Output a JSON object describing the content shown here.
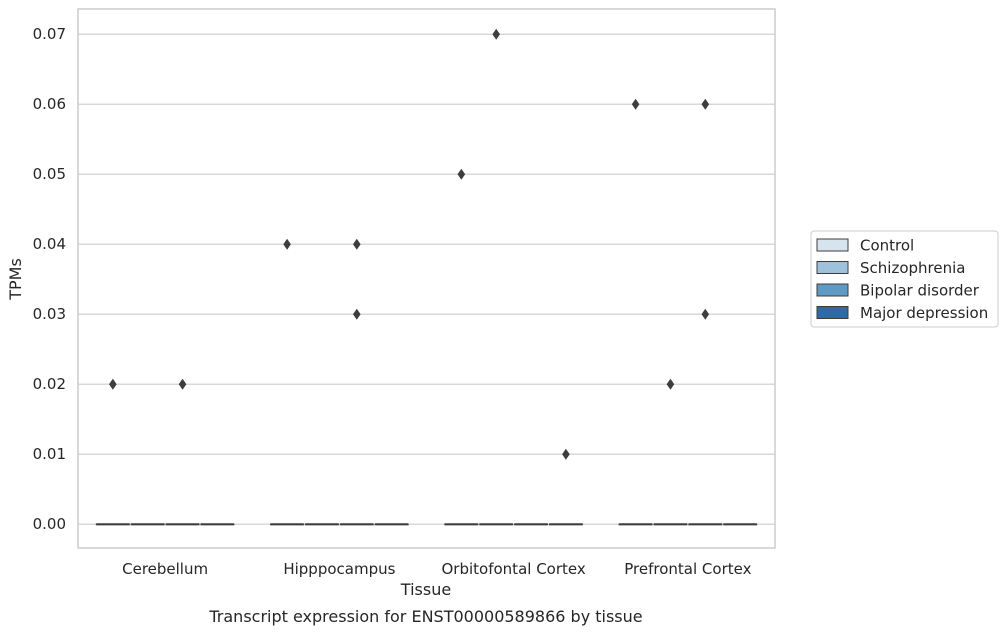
{
  "chart_data": {
    "type": "boxplot",
    "xlabel": "Tissue",
    "ylabel": "TPMs",
    "caption": "Transcript expression for ENST00000589866 by tissue",
    "categories": [
      "Cerebellum",
      "Hipppocampus",
      "Orbitofontal Cortex",
      "Prefrontal Cortex"
    ],
    "ylim": [
      -0.0034,
      0.0736
    ],
    "yticks": [
      {
        "value": 0.0,
        "label": "0.00"
      },
      {
        "value": 0.01,
        "label": "0.01"
      },
      {
        "value": 0.02,
        "label": "0.02"
      },
      {
        "value": 0.03,
        "label": "0.03"
      },
      {
        "value": 0.04,
        "label": "0.04"
      },
      {
        "value": 0.05,
        "label": "0.05"
      },
      {
        "value": 0.06,
        "label": "0.06"
      },
      {
        "value": 0.07,
        "label": "0.07"
      }
    ],
    "grid": "horizontal",
    "legend_position": "right",
    "series": [
      {
        "name": "Control",
        "color": "#d6e4f0",
        "median": [
          0,
          0,
          0,
          0
        ],
        "q1": [
          0,
          0,
          0,
          0
        ],
        "q3": [
          0,
          0,
          0,
          0
        ],
        "outliers": [
          [
            0.02
          ],
          [
            0.04
          ],
          [
            0.05
          ],
          [
            0.06
          ]
        ]
      },
      {
        "name": "Schizophrenia",
        "color": "#9ec2dc",
        "median": [
          0,
          0,
          0,
          0
        ],
        "q1": [
          0,
          0,
          0,
          0
        ],
        "q3": [
          0,
          0,
          0,
          0
        ],
        "outliers": [
          [],
          [],
          [
            0.07
          ],
          [
            0.02
          ]
        ]
      },
      {
        "name": "Bipolar disorder",
        "color": "#5e9ac6",
        "median": [
          0,
          0,
          0,
          0
        ],
        "q1": [
          0,
          0,
          0,
          0
        ],
        "q3": [
          0,
          0,
          0,
          0
        ],
        "outliers": [
          [
            0.02
          ],
          [
            0.04,
            0.03
          ],
          [],
          [
            0.06,
            0.03
          ]
        ]
      },
      {
        "name": "Major depression",
        "color": "#2f6aa8",
        "median": [
          0,
          0,
          0,
          0
        ],
        "q1": [
          0,
          0,
          0,
          0
        ],
        "q3": [
          0,
          0,
          0,
          0
        ],
        "outliers": [
          [],
          [],
          [
            0.01
          ],
          []
        ]
      }
    ]
  }
}
